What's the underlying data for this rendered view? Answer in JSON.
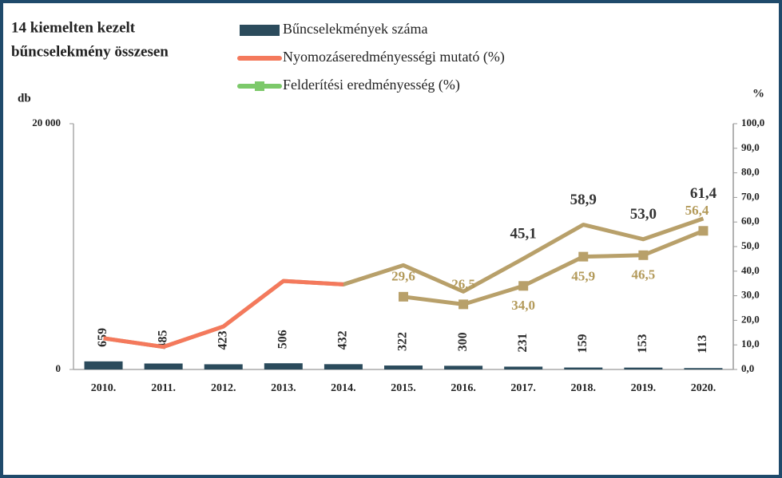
{
  "chart_data": {
    "type": "bar-line",
    "title": [
      "14 kiemelten kezelt",
      "bűncselekmény összesen"
    ],
    "ylabel": "db",
    "y2label": "%",
    "categories": [
      "2010.",
      "2011.",
      "2012.",
      "2013.",
      "2014.",
      "2015.",
      "2016.",
      "2017.",
      "2018.",
      "2019.",
      "2020."
    ],
    "series": [
      {
        "name": "Bűncselekmények száma",
        "type": "bar",
        "color": "#2b4b5c",
        "values": [
          659,
          485,
          423,
          506,
          432,
          322,
          300,
          231,
          159,
          153,
          113
        ]
      },
      {
        "name": "Nyomozáseredményességi mutató (%)",
        "type": "line",
        "axis": "y2",
        "color": "#f4795c",
        "line_color": "#b8a06a",
        "values": [
          12.7,
          9.2,
          17.5,
          36,
          34.6,
          42.4,
          31.7,
          45.1,
          58.9,
          53.0,
          61.4
        ],
        "value_labels": [
          null,
          null,
          null,
          null,
          null,
          null,
          null,
          "45,1",
          "58,9",
          "53,0",
          "61,4"
        ]
      },
      {
        "name": "Felderítési eredményesség (%)",
        "type": "line",
        "axis": "y2",
        "color": "#7cc96a",
        "line_color": "#b8a06a",
        "values": [
          null,
          null,
          null,
          null,
          null,
          29.6,
          26.5,
          34.0,
          45.9,
          46.5,
          56.4
        ],
        "value_labels": [
          null,
          null,
          null,
          null,
          null,
          "29,6",
          "26,5",
          "34,0",
          "45,9",
          "46,5",
          "56,4"
        ]
      }
    ],
    "ylim": [
      0,
      20000
    ],
    "yticks": [
      0,
      {
        "value": 20000,
        "label": "20 000"
      }
    ],
    "y2lim": [
      0,
      100
    ],
    "y2ticks": [
      {
        "value": 0,
        "label": "0,0"
      },
      {
        "value": 10,
        "label": "10,0"
      },
      {
        "value": 20,
        "label": "20,0"
      },
      {
        "value": 30,
        "label": "30,0"
      },
      {
        "value": 40,
        "label": "40,0"
      },
      {
        "value": 50,
        "label": "50,0"
      },
      {
        "value": 60,
        "label": "60,0"
      },
      {
        "value": 70,
        "label": "70,0"
      },
      {
        "value": 80,
        "label": "80,0"
      },
      {
        "value": 90,
        "label": "90,0"
      },
      {
        "value": 100,
        "label": "100,0"
      }
    ]
  }
}
